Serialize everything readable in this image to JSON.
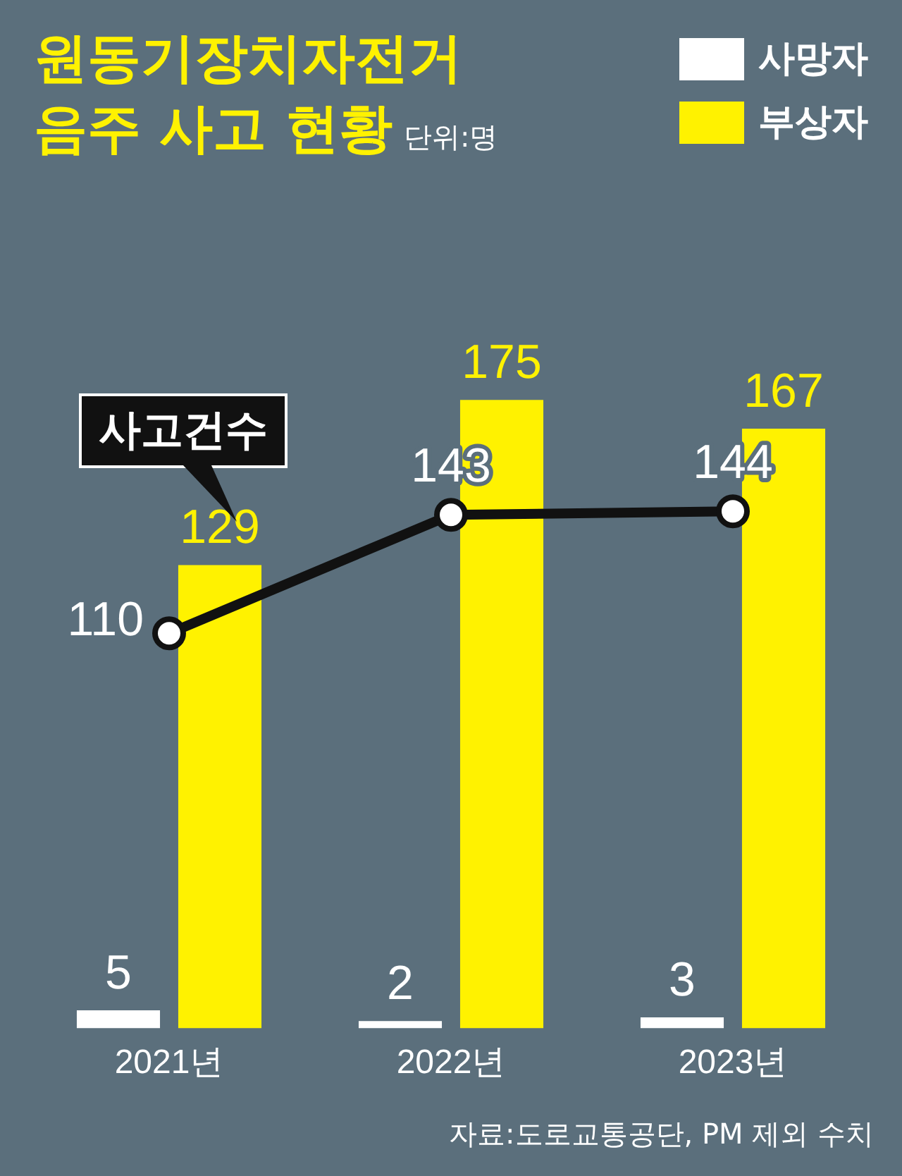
{
  "chart_data": {
    "type": "bar",
    "title": "원동기장치자전거\n음주 사고 현황",
    "subtitle": "단위:명",
    "categories": [
      "2021년",
      "2022년",
      "2023년"
    ],
    "series": [
      {
        "name": "사망자",
        "color": "#ffffff",
        "values": [
          5,
          2,
          3
        ]
      },
      {
        "name": "부상자",
        "color": "#fff200",
        "values": [
          129,
          175,
          167
        ]
      },
      {
        "name": "사고건수",
        "type": "line",
        "color": "#111111",
        "values": [
          110,
          143,
          144
        ]
      }
    ],
    "marker": "circle",
    "legend": "top right",
    "data_labels": true,
    "annotations": [
      "자료:도로교통공단, PM 제외 수치"
    ]
  }
}
